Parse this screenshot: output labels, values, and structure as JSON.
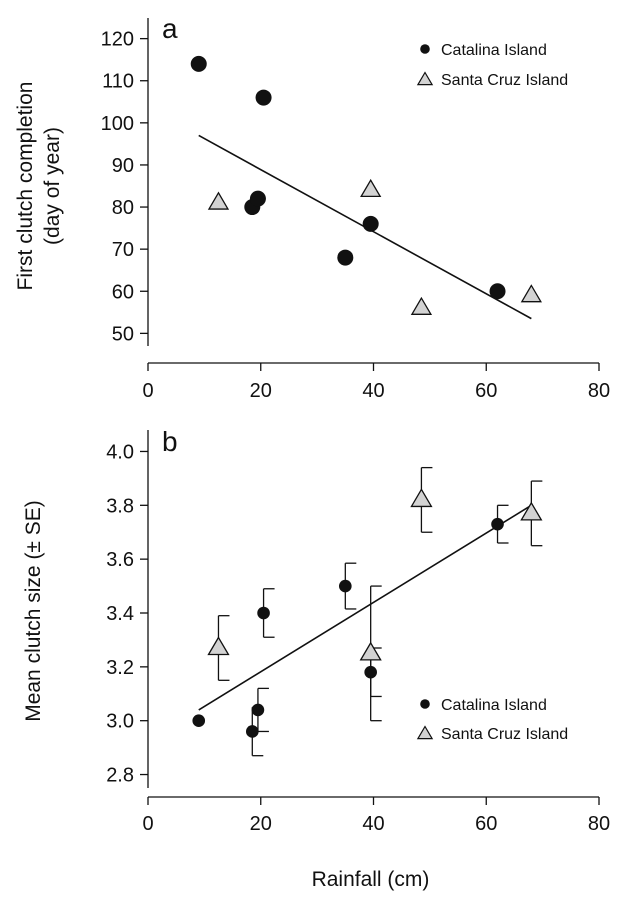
{
  "chart_data": [
    {
      "type": "scatter",
      "panel_label": "a",
      "xlabel": "",
      "ylabel": "First clutch completion\n(day of year)",
      "xlim": [
        0,
        80
      ],
      "ylim": [
        47,
        123
      ],
      "xticks": [
        0,
        20,
        40,
        60,
        80
      ],
      "yticks": [
        50,
        60,
        70,
        80,
        90,
        100,
        110,
        120
      ],
      "grid": false,
      "legend": {
        "placement": "top-right",
        "entries": [
          "Catalina Island",
          "Santa Cruz Island"
        ]
      },
      "series": [
        {
          "name": "Catalina Island",
          "marker": "circle",
          "color": "#111111",
          "points": [
            [
              9,
              114
            ],
            [
              20.5,
              106
            ],
            [
              18.5,
              80
            ],
            [
              19.5,
              82
            ],
            [
              35,
              68
            ],
            [
              39.5,
              76
            ],
            [
              62,
              60
            ]
          ]
        },
        {
          "name": "Santa Cruz Island",
          "marker": "triangle",
          "color": "#d3d3d3",
          "points": [
            [
              12.5,
              81
            ],
            [
              39.5,
              84
            ],
            [
              48.5,
              56
            ],
            [
              68,
              59
            ]
          ]
        }
      ],
      "fit_line": {
        "x": [
          9,
          68
        ],
        "y": [
          97,
          53.5
        ]
      }
    },
    {
      "type": "scatter",
      "panel_label": "b",
      "xlabel": "Rainfall (cm)",
      "ylabel": "Mean clutch size (± SE)",
      "xlim": [
        0,
        80
      ],
      "ylim": [
        2.75,
        4.05
      ],
      "xticks": [
        0,
        20,
        40,
        60,
        80
      ],
      "yticks": [
        2.8,
        3.0,
        3.2,
        3.4,
        3.6,
        3.8,
        4.0
      ],
      "tick_labels_y": [
        "2.8",
        "3.0",
        "3.2",
        "3.4",
        "3.6",
        "3.8",
        "4.0"
      ],
      "grid": false,
      "legend": {
        "placement": "bottom-right",
        "entries": [
          "Catalina Island",
          "Santa Cruz Island"
        ]
      },
      "series": [
        {
          "name": "Catalina Island",
          "marker": "circle",
          "color": "#111111",
          "points": [
            {
              "x": 9,
              "y": 3.0,
              "se": 0
            },
            {
              "x": 18.5,
              "y": 2.96,
              "se": 0.09
            },
            {
              "x": 19.5,
              "y": 3.04,
              "se": 0.08
            },
            {
              "x": 20.5,
              "y": 3.4,
              "se": 0.09
            },
            {
              "x": 35,
              "y": 3.5,
              "se": 0.085
            },
            {
              "x": 39.5,
              "y": 3.18,
              "se": 0.09
            },
            {
              "x": 62,
              "y": 3.73,
              "se": 0.07
            }
          ]
        },
        {
          "name": "Santa Cruz Island",
          "marker": "triangle",
          "color": "#d3d3d3",
          "points": [
            {
              "x": 12.5,
              "y": 3.27,
              "se": 0.12
            },
            {
              "x": 39.5,
              "y": 3.25,
              "se": 0.25
            },
            {
              "x": 48.5,
              "y": 3.82,
              "se": 0.12
            },
            {
              "x": 68,
              "y": 3.77,
              "se": 0.12
            }
          ]
        }
      ],
      "fit_line": {
        "x": [
          9,
          68
        ],
        "y": [
          3.04,
          3.8
        ]
      }
    }
  ]
}
